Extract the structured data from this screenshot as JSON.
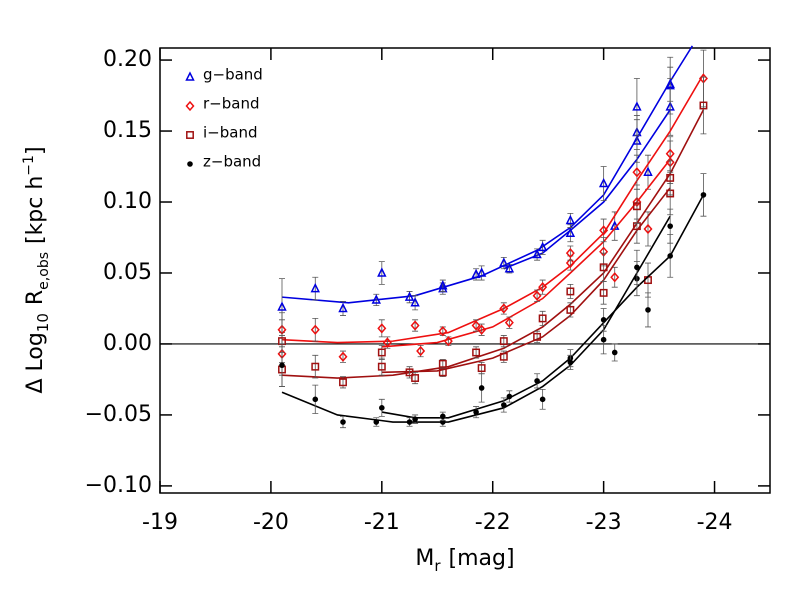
{
  "chart_data": {
    "type": "scatter",
    "x_label": [
      "M",
      "r",
      "[mag]"
    ],
    "y_label": [
      "Δ Log",
      "10",
      "R",
      "e,obs",
      "[kpc h",
      "−1",
      "]"
    ],
    "xlim": [
      -19,
      -24.5
    ],
    "xticks": [
      -19,
      -20,
      -21,
      -22,
      -23,
      -24
    ],
    "ylim": [
      -0.105,
      0.2085
    ],
    "yticks": [
      {
        "value": -0.1,
        "label": "−0.10"
      },
      {
        "value": -0.05,
        "label": "−0.05"
      },
      {
        "value": 0,
        "label": "0.00"
      },
      {
        "value": 0.05,
        "label": "0.05"
      },
      {
        "value": 0.1,
        "label": "0.10"
      },
      {
        "value": 0.15,
        "label": "0.15"
      },
      {
        "value": 0.2,
        "label": "0.20"
      }
    ],
    "reference_line": 0,
    "legend": "top-left",
    "series": [
      {
        "name": "g−band",
        "color": "#0000e0",
        "marker": "triangle",
        "x": [
          -20.1,
          -20.4,
          -20.65,
          -20.95,
          -21.0,
          -21.25,
          -21.3,
          -21.55,
          -21.55,
          -21.85,
          -21.9,
          -22.1,
          -22.15,
          -22.4,
          -22.45,
          -22.7,
          -22.7,
          -23.0,
          -23.1,
          -23.3,
          -23.3,
          -23.3,
          -23.4,
          -23.6,
          -23.6,
          -23.6
        ],
        "values": [
          0.026,
          0.039,
          0.025,
          0.031,
          0.05,
          0.033,
          0.029,
          0.039,
          0.041,
          0.049,
          0.05,
          0.057,
          0.053,
          0.063,
          0.068,
          0.078,
          0.087,
          0.113,
          0.083,
          0.143,
          0.149,
          0.167,
          0.121,
          0.167,
          0.182,
          0.183
        ],
        "errors": [
          0.02,
          0.008,
          0.005,
          0.004,
          0.008,
          0.004,
          0.005,
          0.004,
          0.004,
          0.004,
          0.005,
          0.004,
          0.003,
          0.004,
          0.005,
          0.006,
          0.005,
          0.012,
          0.01,
          0.015,
          0.012,
          0.02,
          0.012,
          0.02,
          0.02,
          0.012
        ],
        "fits": [
          {
            "x": [
              -20.1,
              -20.7,
              -21.3,
              -21.9,
              -22.4,
              -22.7,
              -23.0,
              -23.3,
              -23.6,
              -23.8
            ],
            "values": [
              0.033,
              0.029,
              0.034,
              0.048,
              0.066,
              0.082,
              0.105,
              0.145,
              0.185,
              0.21
            ]
          },
          {
            "x": [
              -22.1,
              -22.45,
              -22.7,
              -23.0,
              -23.3,
              -23.6
            ],
            "values": [
              0.053,
              0.064,
              0.08,
              0.1,
              0.13,
              0.165
            ]
          }
        ]
      },
      {
        "name": "r−band",
        "color": "#ee1010",
        "marker": "diamond",
        "x": [
          -20.1,
          -20.1,
          -20.4,
          -20.65,
          -21.0,
          -21.05,
          -21.3,
          -21.35,
          -21.55,
          -21.6,
          -21.85,
          -21.9,
          -22.1,
          -22.15,
          -22.4,
          -22.45,
          -22.7,
          -22.7,
          -23.0,
          -23.0,
          -23.1,
          -23.3,
          -23.3,
          -23.4,
          -23.6,
          -23.6,
          -23.9
        ],
        "values": [
          -0.007,
          0.01,
          0.01,
          -0.009,
          0.011,
          0.001,
          0.013,
          -0.005,
          0.009,
          0.002,
          0.013,
          0.01,
          0.025,
          0.015,
          0.034,
          0.04,
          0.057,
          0.064,
          0.065,
          0.08,
          0.047,
          0.1,
          0.121,
          0.081,
          0.128,
          0.134,
          0.187
        ],
        "errors": [
          0.015,
          0.012,
          0.008,
          0.004,
          0.006,
          0.004,
          0.004,
          0.004,
          0.003,
          0.003,
          0.004,
          0.004,
          0.004,
          0.004,
          0.004,
          0.005,
          0.005,
          0.005,
          0.01,
          0.008,
          0.007,
          0.012,
          0.012,
          0.012,
          0.015,
          0.012,
          0.02
        ],
        "fits": [
          {
            "x": [
              -20.1,
              -20.6,
              -21.1,
              -21.6,
              -22.1,
              -22.45,
              -22.7,
              -23.0,
              -23.3,
              -23.6,
              -23.9
            ],
            "values": [
              0.003,
              0.001,
              0.002,
              0.008,
              0.025,
              0.04,
              0.055,
              0.078,
              0.115,
              0.15,
              0.19
            ]
          },
          {
            "x": [
              -21.0,
              -21.5,
              -22.0,
              -22.45,
              -22.7,
              -23.0,
              -23.3,
              -23.6
            ],
            "values": [
              -0.002,
              0.001,
              0.012,
              0.032,
              0.05,
              0.072,
              0.1,
              0.13
            ]
          }
        ]
      },
      {
        "name": "i−band",
        "color": "#a01010",
        "marker": "square",
        "x": [
          -20.1,
          -20.1,
          -20.4,
          -20.65,
          -21.0,
          -21.0,
          -21.25,
          -21.3,
          -21.55,
          -21.55,
          -21.85,
          -21.9,
          -22.1,
          -22.1,
          -22.4,
          -22.45,
          -22.7,
          -22.7,
          -23.0,
          -23.0,
          -23.3,
          -23.3,
          -23.4,
          -23.6,
          -23.6,
          -23.9
        ],
        "values": [
          0.002,
          -0.018,
          -0.016,
          -0.027,
          -0.016,
          -0.006,
          -0.02,
          -0.024,
          -0.014,
          -0.02,
          -0.006,
          -0.017,
          0.002,
          -0.009,
          0.005,
          0.018,
          0.024,
          0.037,
          0.054,
          0.036,
          0.083,
          0.097,
          0.045,
          0.106,
          0.117,
          0.168
        ],
        "errors": [
          0.015,
          0.012,
          0.008,
          0.004,
          0.006,
          0.005,
          0.004,
          0.004,
          0.003,
          0.003,
          0.004,
          0.004,
          0.004,
          0.004,
          0.004,
          0.005,
          0.005,
          0.005,
          0.01,
          0.008,
          0.012,
          0.012,
          0.012,
          0.015,
          0.012,
          0.02
        ],
        "fits": [
          {
            "x": [
              -20.1,
              -20.6,
              -21.1,
              -21.6,
              -22.1,
              -22.45,
              -22.7,
              -23.0,
              -23.3,
              -23.6,
              -23.9
            ],
            "values": [
              -0.022,
              -0.024,
              -0.022,
              -0.016,
              -0.003,
              0.012,
              0.028,
              0.05,
              0.085,
              0.12,
              0.165
            ]
          },
          {
            "x": [
              -21.0,
              -21.5,
              -22.0,
              -22.45,
              -22.7,
              -23.0,
              -23.3,
              -23.6
            ],
            "values": [
              -0.02,
              -0.019,
              -0.01,
              0.005,
              0.02,
              0.045,
              0.08,
              0.11
            ]
          }
        ]
      },
      {
        "name": "z−band",
        "color": "#000000",
        "marker": "circle",
        "x": [
          -20.1,
          -20.4,
          -20.65,
          -20.95,
          -21.0,
          -21.25,
          -21.3,
          -21.55,
          -21.55,
          -21.85,
          -21.9,
          -22.1,
          -22.15,
          -22.4,
          -22.45,
          -22.7,
          -22.7,
          -23.0,
          -23.0,
          -23.1,
          -23.3,
          -23.3,
          -23.4,
          -23.6,
          -23.6,
          -23.9
        ],
        "values": [
          -0.015,
          -0.039,
          -0.055,
          -0.055,
          -0.045,
          -0.055,
          -0.053,
          -0.055,
          -0.051,
          -0.048,
          -0.031,
          -0.043,
          -0.037,
          -0.026,
          -0.039,
          -0.01,
          -0.013,
          0.003,
          0.017,
          -0.006,
          0.046,
          0.054,
          0.024,
          0.062,
          0.083,
          0.105
        ],
        "errors": [
          0.015,
          0.01,
          0.004,
          0.003,
          0.006,
          0.003,
          0.003,
          0.003,
          0.003,
          0.004,
          0.01,
          0.005,
          0.004,
          0.005,
          0.007,
          0.006,
          0.005,
          0.01,
          0.008,
          0.006,
          0.012,
          0.012,
          0.012,
          0.015,
          0.012,
          0.015
        ],
        "fits": [
          {
            "x": [
              -20.1,
              -20.6,
              -21.1,
              -21.6,
              -22.1,
              -22.45,
              -22.7,
              -23.0,
              -23.3,
              -23.6
            ],
            "values": [
              -0.034,
              -0.05,
              -0.055,
              -0.055,
              -0.045,
              -0.03,
              -0.015,
              0.01,
              0.05,
              0.09
            ]
          },
          {
            "x": [
              -21.0,
              -21.3,
              -21.6,
              -22.1,
              -22.45,
              -22.7,
              -23.0,
              -23.3,
              -23.6,
              -23.9
            ],
            "values": [
              -0.048,
              -0.052,
              -0.052,
              -0.04,
              -0.026,
              -0.01,
              0.015,
              0.04,
              0.062,
              0.105
            ]
          }
        ]
      }
    ]
  }
}
